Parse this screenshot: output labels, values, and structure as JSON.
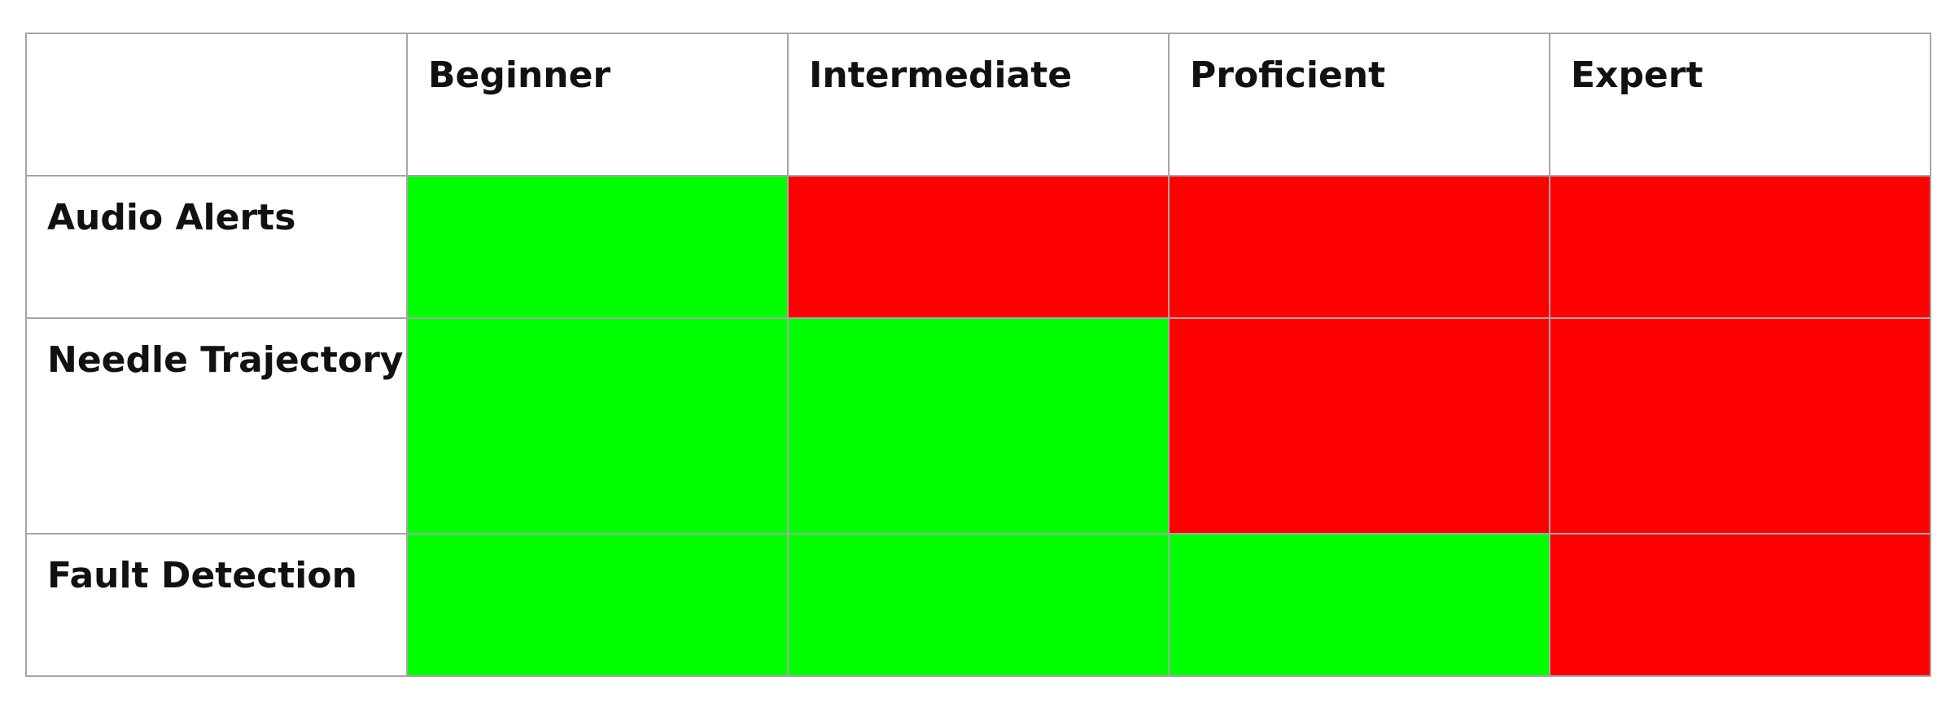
{
  "colors": {
    "available": "#00ff00",
    "unavailable": "#ff0000",
    "border": "#a6a6a6"
  },
  "columns": [
    "Beginner",
    "Intermediate",
    "Proficient",
    "Expert"
  ],
  "rows": [
    {
      "label": "Audio Alerts",
      "enabled": [
        true,
        false,
        false,
        false
      ]
    },
    {
      "label": "Needle Trajectory",
      "enabled": [
        true,
        true,
        false,
        false
      ]
    },
    {
      "label": "Fault Detection",
      "enabled": [
        true,
        true,
        true,
        false
      ]
    }
  ]
}
